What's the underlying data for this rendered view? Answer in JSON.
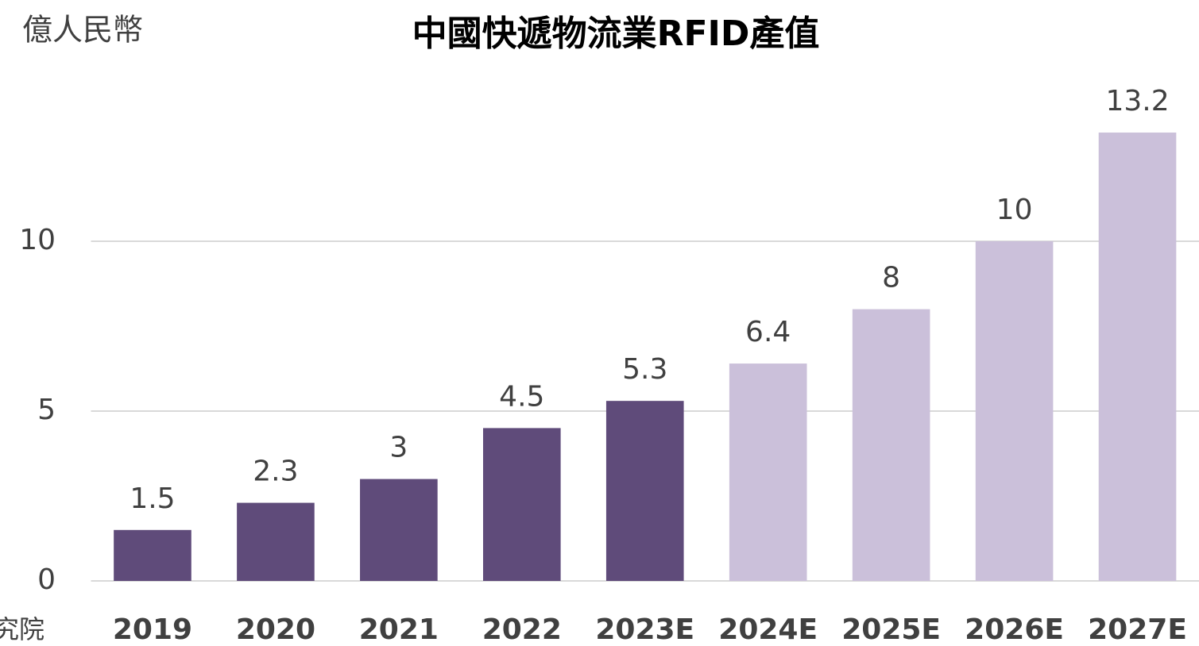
{
  "chart_data": {
    "type": "bar",
    "title": "中國快遞物流業RFID產值",
    "y_axis_label": "億人民幣",
    "source": "究院",
    "categories": [
      "2019",
      "2020",
      "2021",
      "2022",
      "2023E",
      "2024E",
      "2025E",
      "2026E",
      "2027E"
    ],
    "values": [
      1.5,
      2.3,
      3,
      4.5,
      5.3,
      6.4,
      8,
      10,
      13.2
    ],
    "colors": [
      "#5f4b7a",
      "#5f4b7a",
      "#5f4b7a",
      "#5f4b7a",
      "#5f4b7a",
      "#cbc0da",
      "#cbc0da",
      "#cbc0da",
      "#cbc0da"
    ],
    "ylim": [
      0,
      14
    ],
    "yticks": [
      0,
      5,
      10
    ],
    "grid": true
  }
}
